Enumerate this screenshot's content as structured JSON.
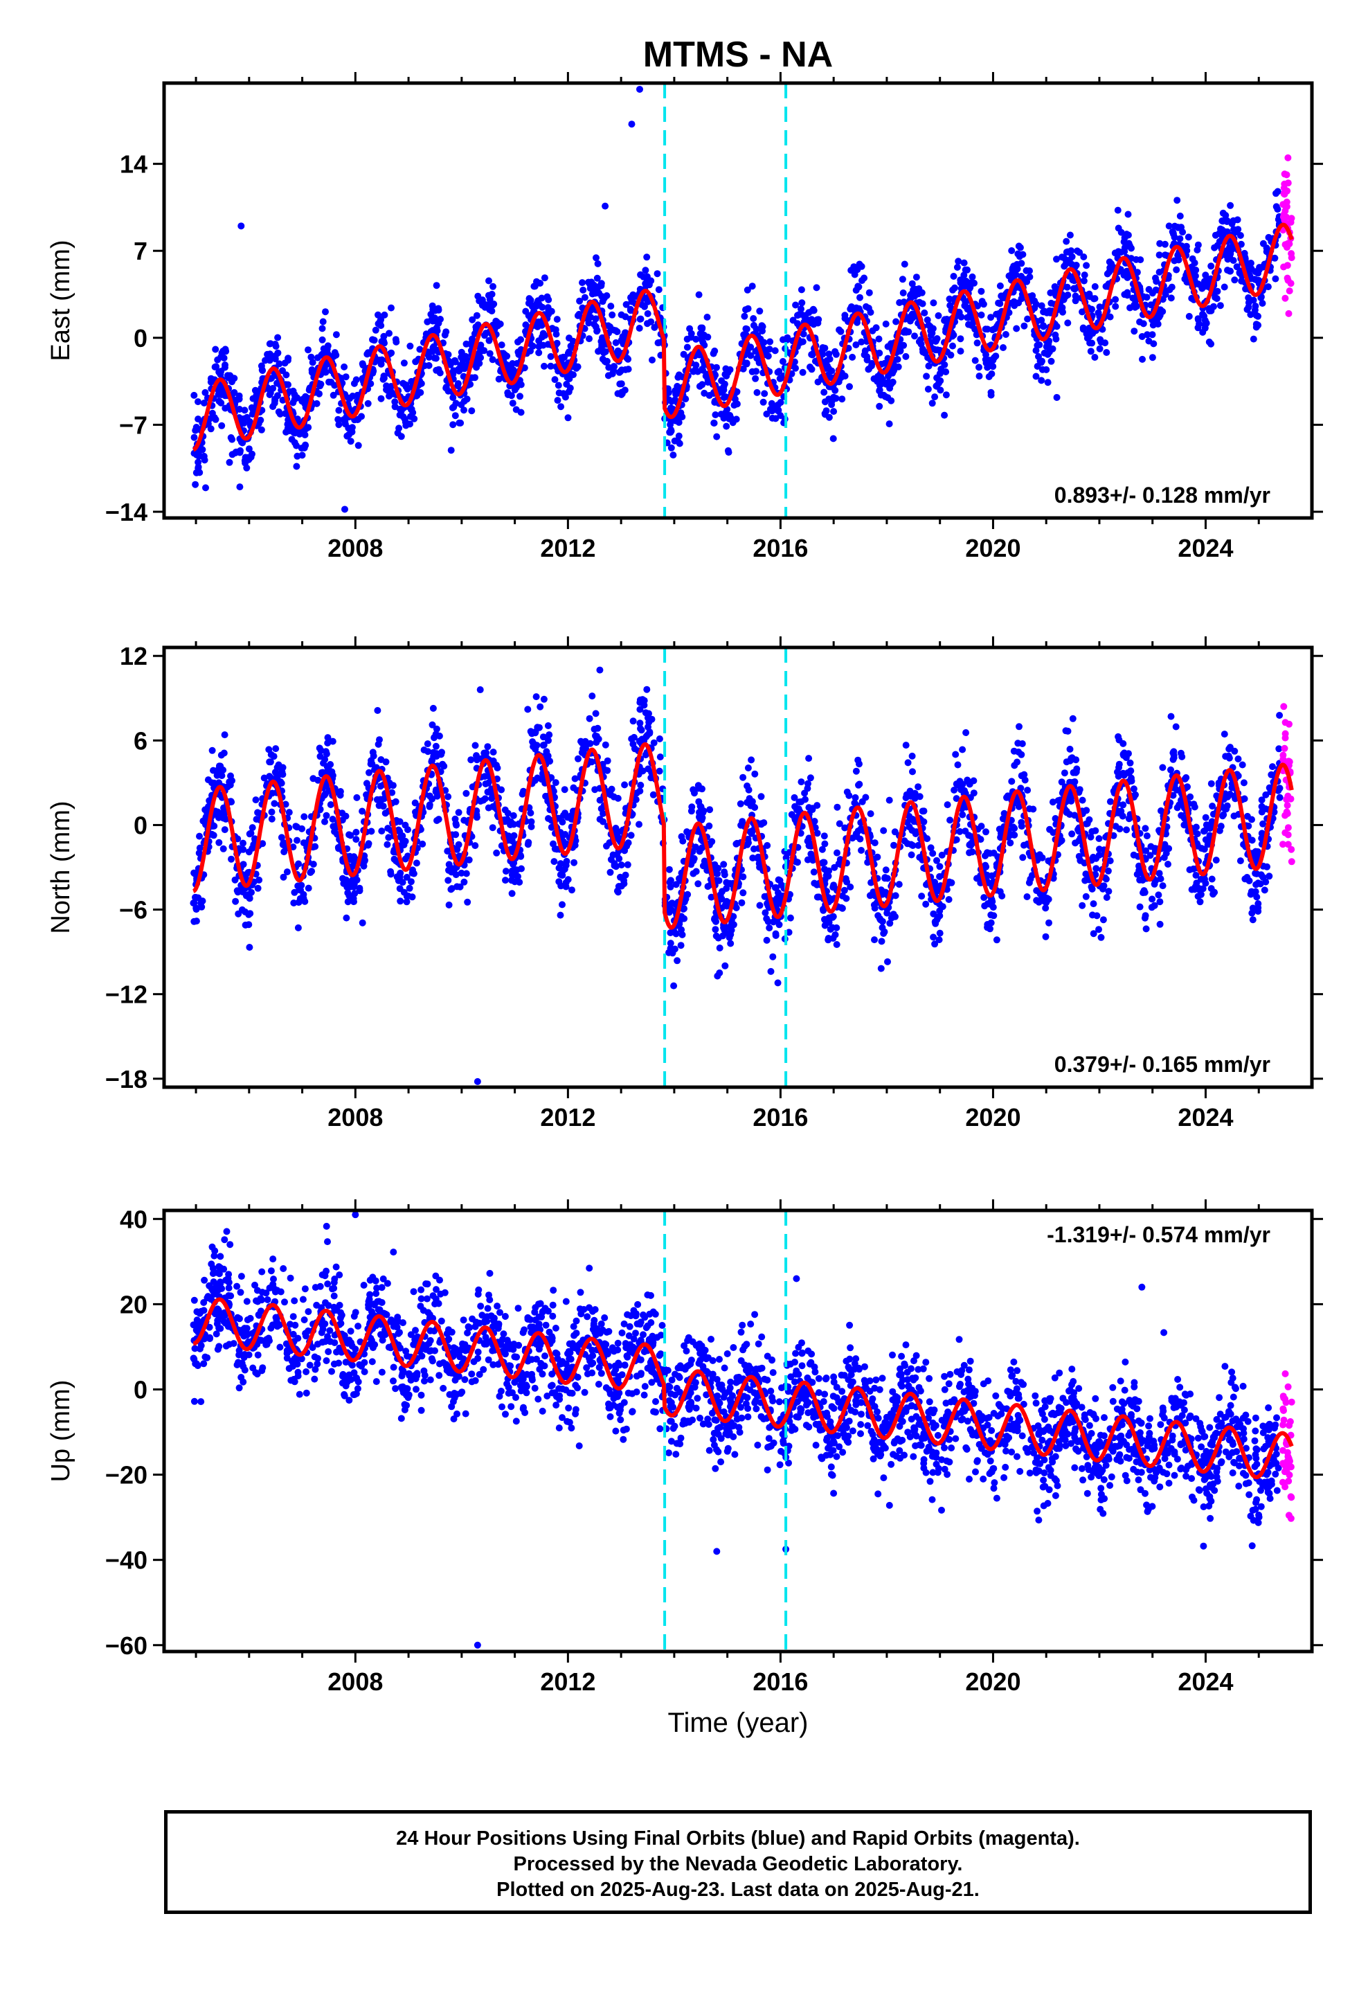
{
  "title": "MTMS - NA",
  "colors": {
    "final_orbits": "#0000ff",
    "rapid_orbits": "#ff00ff",
    "model": "#ff0000",
    "events": "#00e5ee",
    "axes": "#000000"
  },
  "footer": {
    "line1": "24 Hour Positions Using Final Orbits (blue) and Rapid Orbits (magenta).",
    "line2": "Processed by the Nevada Geodetic Laboratory.",
    "line3": "Plotted on 2025-Aug-23. Last data on 2025-Aug-21."
  },
  "chart_data": [
    {
      "type": "scatter",
      "ylabel": "East (mm)",
      "xlabel": "",
      "xlim": [
        2004.4,
        2026.0
      ],
      "ylim": [
        -14.5,
        20.5
      ],
      "x_ticks": [
        2008,
        2012,
        2016,
        2020,
        2024
      ],
      "y_ticks": [
        -14,
        -7,
        0,
        7,
        14
      ],
      "rate_label": "0.893+/- 0.128 mm/yr",
      "rate_position": "bottom-right",
      "events": [
        2013.82,
        2016.1
      ],
      "model": {
        "rate": 0.893,
        "offset": -6.9,
        "amplitude": 2.6,
        "steps": [
          {
            "t": 2013.82,
            "dy": -5.4
          }
        ]
      },
      "series": [
        {
          "name": "Final Orbits",
          "color": "#0000ff",
          "x_range": [
            2004.95,
            2025.4
          ],
          "noise": 1.6
        },
        {
          "name": "Rapid Orbits",
          "color": "#ff00ff",
          "x_range": [
            2025.45,
            2025.62
          ],
          "noise": 2.2
        }
      ],
      "outliers": [
        [
          2005.85,
          9.0
        ],
        [
          2007.8,
          -13.8
        ],
        [
          2012.7,
          10.6
        ],
        [
          2013.2,
          17.2
        ],
        [
          2013.35,
          20.0
        ],
        [
          2021.2,
          -4.8
        ],
        [
          2020.1,
          2.8
        ]
      ]
    },
    {
      "type": "scatter",
      "ylabel": "North (mm)",
      "xlabel": "",
      "xlim": [
        2004.4,
        2026.0
      ],
      "ylim": [
        -18.6,
        12.6
      ],
      "x_ticks": [
        2008,
        2012,
        2016,
        2020,
        2024
      ],
      "y_ticks": [
        -18,
        -12,
        -6,
        0,
        6,
        12
      ],
      "rate_label": "0.379+/- 0.165 mm/yr",
      "rate_position": "bottom-right",
      "events": [
        2013.82,
        2016.1
      ],
      "model": {
        "rate": 0.379,
        "offset": -1.3,
        "amplitude": 3.6,
        "steps": [
          {
            "t": 2013.82,
            "dy": -6.0
          }
        ]
      },
      "series": [
        {
          "name": "Final Orbits",
          "color": "#0000ff",
          "x_range": [
            2004.95,
            2025.4
          ],
          "noise": 1.8
        },
        {
          "name": "Rapid Orbits",
          "color": "#ff00ff",
          "x_range": [
            2025.45,
            2025.62
          ],
          "noise": 2.8
        }
      ],
      "outliers": [
        [
          2010.3,
          -18.2
        ],
        [
          2010.35,
          9.6
        ],
        [
          2012.6,
          11.0
        ],
        [
          2015.95,
          -11.2
        ]
      ]
    },
    {
      "type": "scatter",
      "ylabel": "Up (mm)",
      "xlabel": "Time (year)",
      "xlim": [
        2004.4,
        2026.0
      ],
      "ylim": [
        -61.5,
        42.0
      ],
      "x_ticks": [
        2008,
        2012,
        2016,
        2020,
        2024
      ],
      "y_ticks": [
        -60,
        -40,
        -20,
        0,
        20,
        40
      ],
      "rate_label": "-1.319+/- 0.574 mm/yr",
      "rate_position": "top-right",
      "events": [
        2013.82,
        2016.1
      ],
      "model": {
        "rate": -1.319,
        "offset": 17.0,
        "amplitude": 5.5,
        "steps": [
          {
            "t": 2013.82,
            "dy": -5.0
          }
        ]
      },
      "series": [
        {
          "name": "Final Orbits",
          "color": "#0000ff",
          "x_range": [
            2004.95,
            2025.4
          ],
          "noise": 6.0
        },
        {
          "name": "Rapid Orbits",
          "color": "#ff00ff",
          "x_range": [
            2025.45,
            2025.62
          ],
          "noise": 8.0
        }
      ],
      "outliers": [
        [
          2010.3,
          -60.0
        ],
        [
          2008.0,
          41.0
        ],
        [
          2016.1,
          -37.5
        ],
        [
          2014.8,
          -38.0
        ],
        [
          2016.3,
          26.0
        ],
        [
          2022.8,
          24.0
        ]
      ]
    }
  ]
}
